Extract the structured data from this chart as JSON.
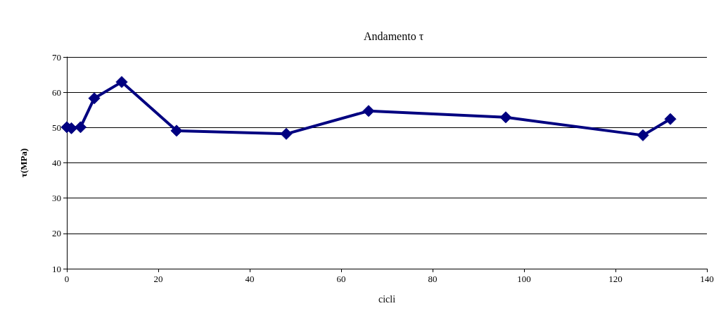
{
  "chart_data": {
    "type": "line",
    "title": "Andamento τ",
    "xlabel": "cicli",
    "ylabel": "τ(MPa)",
    "x": [
      0,
      1,
      3,
      6,
      12,
      24,
      48,
      66,
      96,
      126,
      132
    ],
    "series": [
      {
        "color": "#000080",
        "values": [
          50.1,
          49.8,
          50.1,
          58.3,
          62.9,
          49.1,
          48.2,
          54.7,
          52.9,
          47.8,
          52.4
        ]
      }
    ],
    "xlim": [
      0,
      140
    ],
    "xticks": [
      0,
      20,
      40,
      60,
      80,
      100,
      120,
      140
    ],
    "ylim": [
      10,
      70
    ],
    "yticks": [
      10,
      20,
      30,
      40,
      50,
      60,
      70
    ],
    "grid": "y",
    "marker": "diamond",
    "line_style": "solid"
  }
}
